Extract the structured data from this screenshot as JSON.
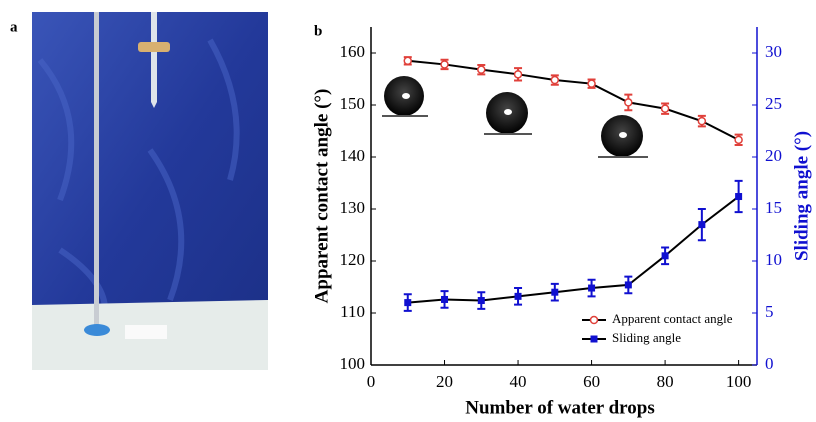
{
  "panel_a_label": "a",
  "chart_data": {
    "type": "line",
    "panel_label": "b",
    "x_label": "Number of water drops",
    "y_label": "Apparent contact angle (°)",
    "y2_label": "Sliding angle (°)",
    "x": [
      10,
      20,
      30,
      40,
      50,
      60,
      70,
      80,
      90,
      100
    ],
    "xlim": [
      0,
      105
    ],
    "xticks": [
      0,
      20,
      40,
      60,
      80,
      100
    ],
    "ylim": [
      100,
      165
    ],
    "yticks": [
      100,
      110,
      120,
      130,
      140,
      150,
      160
    ],
    "y2lim": [
      0,
      32.5
    ],
    "y2ticks": [
      0,
      5,
      10,
      15,
      20,
      25,
      30
    ],
    "y2_color": "#1010d0",
    "legend": "bottom-right",
    "series": [
      {
        "name": "Apparent contact angle",
        "color": "#e0403a",
        "line_color": "#000000",
        "marker": "circle",
        "values": [
          158.5,
          157.8,
          156.8,
          155.9,
          154.8,
          154.1,
          150.5,
          149.3,
          146.9,
          143.3
        ],
        "errors": [
          0.7,
          0.9,
          0.9,
          1.2,
          0.9,
          0.8,
          1.5,
          1.0,
          1.0,
          1.0
        ]
      },
      {
        "name": "Sliding angle",
        "color": "#1010d0",
        "line_color": "#000000",
        "marker": "square",
        "axis": "y2",
        "values": [
          6.0,
          6.3,
          6.2,
          6.6,
          7.0,
          7.4,
          7.7,
          10.5,
          13.5,
          16.2
        ],
        "errors": [
          0.8,
          0.8,
          0.8,
          0.8,
          0.8,
          0.8,
          0.8,
          0.8,
          1.5,
          1.5
        ]
      }
    ]
  }
}
